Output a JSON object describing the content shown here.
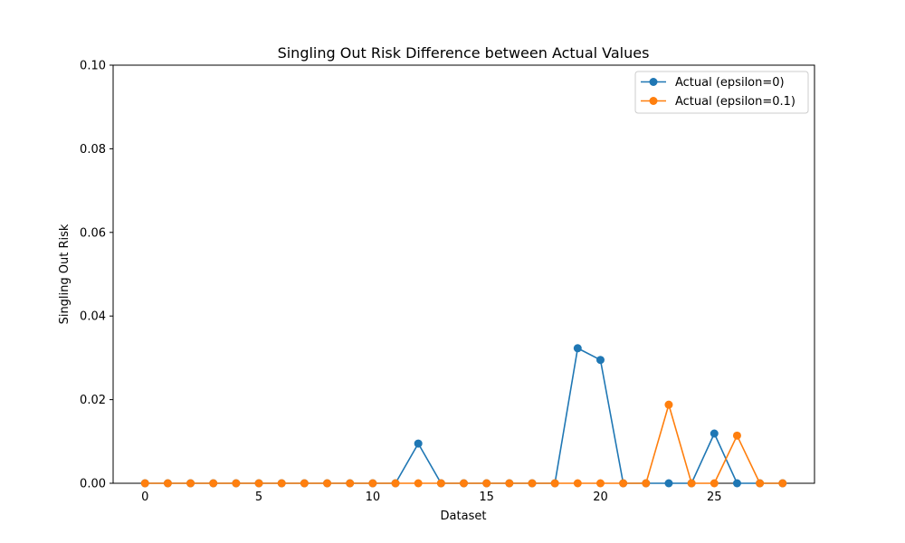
{
  "chart_data": {
    "type": "line",
    "title": "Singling Out Risk Difference between Actual Values",
    "xlabel": "Dataset",
    "ylabel": "Singling Out Risk",
    "xlim": [
      -1.4,
      29.4
    ],
    "ylim": [
      0,
      0.1
    ],
    "xticks": [
      0,
      5,
      10,
      15,
      20,
      25
    ],
    "xtick_labels": [
      "0",
      "5",
      "10",
      "15",
      "20",
      "25"
    ],
    "yticks": [
      0,
      0.02,
      0.04,
      0.06,
      0.08,
      0.1
    ],
    "ytick_labels": [
      "0.00",
      "0.02",
      "0.04",
      "0.06",
      "0.08",
      "0.10"
    ],
    "grid": false,
    "legend_position": "top-right",
    "x": [
      0,
      1,
      2,
      3,
      4,
      5,
      6,
      7,
      8,
      9,
      10,
      11,
      12,
      13,
      14,
      15,
      16,
      17,
      18,
      19,
      20,
      21,
      22,
      23,
      24,
      25,
      26,
      27,
      28
    ],
    "series": [
      {
        "name": "Actual (epsilon=0)",
        "color": "#1f77b4",
        "values": [
          0,
          0,
          0,
          0,
          0,
          0,
          0,
          0,
          0,
          0,
          0,
          0,
          0.0095,
          0,
          0,
          0,
          0,
          0,
          0,
          0.0323,
          0.0295,
          0,
          0,
          0,
          0,
          0.0119,
          0,
          0,
          0
        ]
      },
      {
        "name": "Actual (epsilon=0.1)",
        "color": "#ff7f0e",
        "values": [
          0,
          0,
          0,
          0,
          0,
          0,
          0,
          0,
          0,
          0,
          0,
          0,
          0,
          0,
          0,
          0,
          0,
          0,
          0,
          0,
          0,
          0,
          0,
          0.0188,
          0,
          0,
          0.0114,
          0,
          0
        ]
      }
    ]
  }
}
